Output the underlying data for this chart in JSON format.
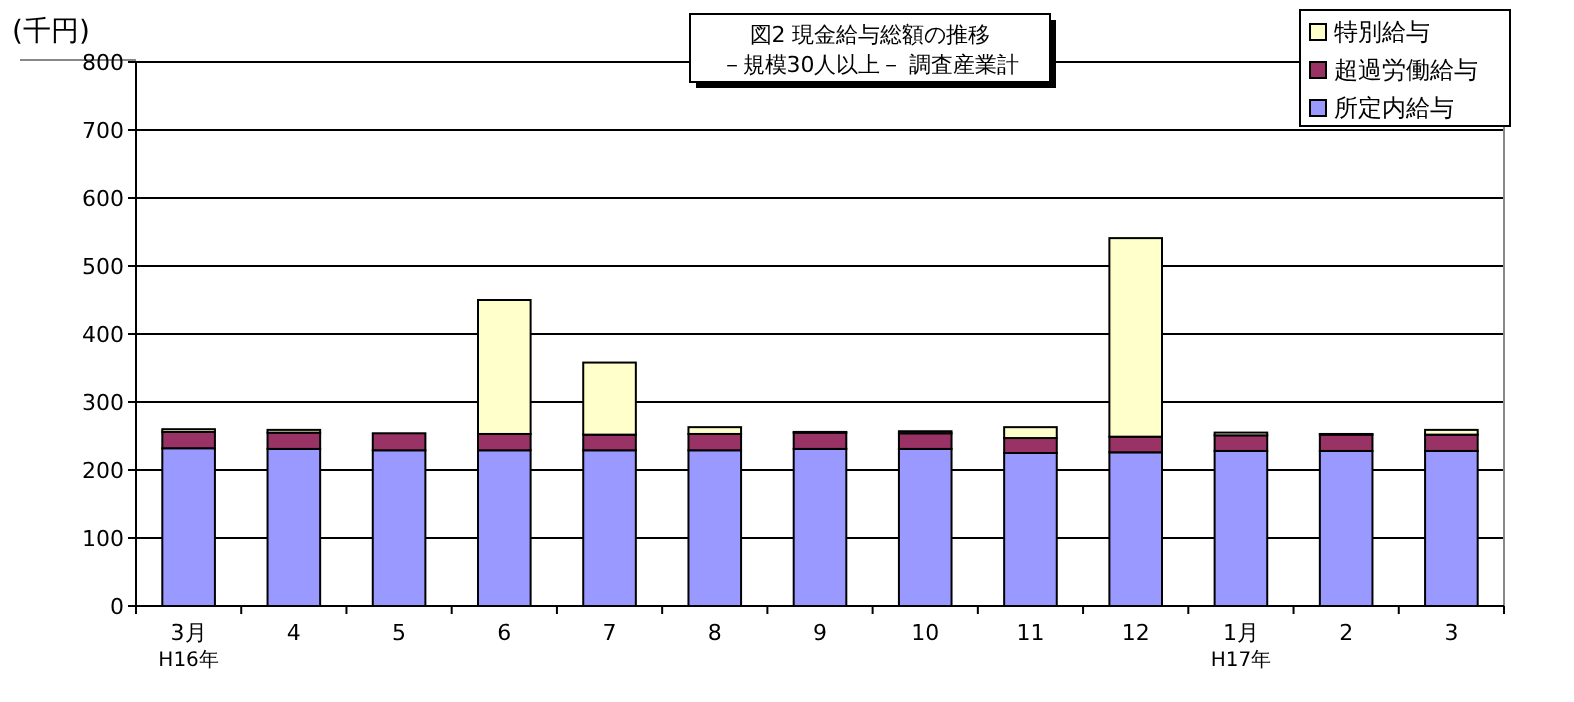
{
  "chart_data": {
    "type": "bar",
    "stacked": true,
    "title": "図2  現金給与総額の推移",
    "subtitle": "－規模30人以上－  調査産業計",
    "ylabel": "(千円)",
    "categories": [
      "3月\nH16年",
      "4",
      "5",
      "6",
      "7",
      "8",
      "9",
      "10",
      "11",
      "12",
      "1月\nH17年",
      "2",
      "3"
    ],
    "series": [
      {
        "name": "所定内給与",
        "color": "#9999ff",
        "values": [
          232,
          231,
          229,
          229,
          229,
          229,
          231,
          231,
          225,
          226,
          228,
          228,
          228
        ]
      },
      {
        "name": "超過労働給与",
        "color": "#993366",
        "values": [
          24,
          24,
          25,
          24,
          23,
          24,
          24,
          23,
          22,
          23,
          23,
          24,
          24
        ]
      },
      {
        "name": "特別給与",
        "color": "#ffffcc",
        "values": [
          4,
          4,
          0,
          197,
          106,
          10,
          1,
          3,
          16,
          292,
          4,
          1,
          7
        ]
      }
    ],
    "ylim": [
      0,
      800
    ],
    "yticks": [
      0,
      100,
      200,
      300,
      400,
      500,
      600,
      700,
      800
    ],
    "grid": "y",
    "legend": "top right"
  }
}
